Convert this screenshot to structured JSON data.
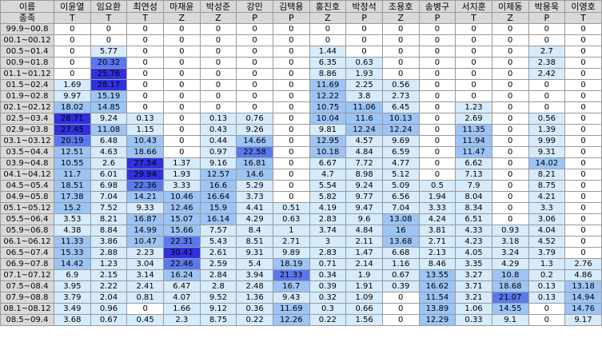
{
  "header": {
    "corner_top": "이름",
    "corner_bottom": "종족",
    "players": [
      {
        "name": "이윤열",
        "race": "T"
      },
      {
        "name": "임요환",
        "race": "T"
      },
      {
        "name": "최연성",
        "race": "T"
      },
      {
        "name": "마재윤",
        "race": "Z"
      },
      {
        "name": "박성준",
        "race": "Z"
      },
      {
        "name": "강민",
        "race": "P"
      },
      {
        "name": "김택용",
        "race": "P"
      },
      {
        "name": "홍진호",
        "race": "Z"
      },
      {
        "name": "박정석",
        "race": "P"
      },
      {
        "name": "조용호",
        "race": "Z"
      },
      {
        "name": "송병구",
        "race": "P"
      },
      {
        "name": "서지훈",
        "race": "T"
      },
      {
        "name": "이제동",
        "race": "Z"
      },
      {
        "name": "박용욱",
        "race": "P"
      },
      {
        "name": "이영호",
        "race": "T"
      }
    ]
  },
  "color_scale": {
    "max": "#3030e0",
    "high": "#5a78ee",
    "mid": "#9cc4f6",
    "low": "#d6ebfc",
    "none": "#ffffff"
  },
  "rows": [
    {
      "period": "99.9~00.8",
      "values": [
        "0",
        "0",
        "0",
        "0",
        "0",
        "0",
        "0",
        "0",
        "0",
        "0",
        "0",
        "0",
        "0",
        "0",
        "0"
      ]
    },
    {
      "period": "00.1~00.12",
      "values": [
        "0",
        "0",
        "0",
        "0",
        "0",
        "0",
        "0",
        "0",
        "0",
        "0",
        "0",
        "0",
        "0",
        "0",
        "0"
      ]
    },
    {
      "period": "00.5~01.4",
      "values": [
        "0",
        "5.77",
        "0",
        "0",
        "0",
        "0",
        "0",
        "1.44",
        "0",
        "0",
        "0",
        "0",
        "0",
        "2.7",
        "0"
      ]
    },
    {
      "period": "00.9~01.8",
      "values": [
        "0",
        "20.32",
        "0",
        "0",
        "0",
        "0",
        "0",
        "6.35",
        "0.63",
        "0",
        "0",
        "0",
        "0",
        "2.38",
        "0"
      ]
    },
    {
      "period": "01.1~01.12",
      "values": [
        "0",
        "25.76",
        "0",
        "0",
        "0",
        "0",
        "0",
        "8.86",
        "1.93",
        "0",
        "0",
        "0",
        "0",
        "2.42",
        "0"
      ]
    },
    {
      "period": "01.5~02.4",
      "values": [
        "1.69",
        "28.17",
        "0",
        "0",
        "0",
        "0",
        "0",
        "11.69",
        "2.25",
        "0.56",
        "0",
        "0",
        "0",
        "0",
        "0"
      ]
    },
    {
      "period": "01.9~02.8",
      "values": [
        "9.97",
        "15.19",
        "0",
        "0",
        "0",
        "0",
        "0",
        "12.22",
        "3.8",
        "2.73",
        "0",
        "0",
        "0",
        "0",
        "0"
      ]
    },
    {
      "period": "02.1~02.12",
      "values": [
        "18.02",
        "14.85",
        "0",
        "0",
        "0",
        "0",
        "0",
        "10.75",
        "11.06",
        "6.45",
        "0",
        "1.23",
        "0",
        "0",
        "0"
      ]
    },
    {
      "period": "02.5~03.4",
      "values": [
        "28.71",
        "9.24",
        "0.13",
        "0",
        "0.13",
        "0.76",
        "0",
        "10.04",
        "11.6",
        "10.13",
        "0",
        "2.69",
        "0",
        "0.56",
        "0"
      ]
    },
    {
      "period": "02.9~03.8",
      "values": [
        "27.45",
        "11.08",
        "1.15",
        "0",
        "0.43",
        "9.26",
        "0",
        "9.81",
        "12.24",
        "12.24",
        "0",
        "11.35",
        "0",
        "1.39",
        "0"
      ]
    },
    {
      "period": "03.1~03.12",
      "values": [
        "20.19",
        "6.48",
        "10.43",
        "0",
        "0.44",
        "14.66",
        "0",
        "12.95",
        "4.57",
        "9.69",
        "0",
        "11.94",
        "0",
        "9.99",
        "0"
      ]
    },
    {
      "period": "03.5~04.4",
      "values": [
        "12.51",
        "4.63",
        "18.66",
        "0",
        "0.97",
        "22.58",
        "0",
        "10.18",
        "4.84",
        "6.59",
        "0",
        "11.47",
        "0",
        "9.31",
        "0"
      ]
    },
    {
      "period": "03.9~04.8",
      "values": [
        "10.55",
        "2.6",
        "27.54",
        "1.37",
        "9.16",
        "16.81",
        "0",
        "6.67",
        "7.72",
        "4.77",
        "0",
        "6.62",
        "0",
        "14.02",
        "0"
      ]
    },
    {
      "period": "04.1~04.12",
      "values": [
        "11.7",
        "6.01",
        "29.94",
        "1.93",
        "12.57",
        "14.6",
        "0",
        "4.7",
        "8.98",
        "5.12",
        "0",
        "7.13",
        "0",
        "8.21",
        "0"
      ]
    },
    {
      "period": "04.5~05.4",
      "values": [
        "18.51",
        "6.98",
        "22.36",
        "3.33",
        "16.6",
        "5.29",
        "0",
        "5.54",
        "9.24",
        "5.09",
        "0.5",
        "7.9",
        "0",
        "8.75",
        "0"
      ]
    },
    {
      "period": "04.9~05.8",
      "values": [
        "17.38",
        "7.04",
        "14.21",
        "10.46",
        "16.64",
        "3.73",
        "0",
        "5.82",
        "9.77",
        "6.56",
        "1.94",
        "8.04",
        "0",
        "4.21",
        "0"
      ]
    },
    {
      "period": "05.1~05.12",
      "values": [
        "15.2",
        "7.52",
        "9.33",
        "12.46",
        "15.9",
        "4.41",
        "0.51",
        "4.19",
        "9.47",
        "7.04",
        "3.33",
        "8.34",
        "0",
        "3.3",
        "0"
      ]
    },
    {
      "period": "05.5~06.4",
      "values": [
        "3.53",
        "8.21",
        "16.87",
        "15.07",
        "16.14",
        "4.29",
        "0.63",
        "2.83",
        "9.6",
        "13.08",
        "4.24",
        "6.51",
        "0",
        "3.06",
        "0"
      ]
    },
    {
      "period": "05.9~06.8",
      "values": [
        "4.38",
        "8.84",
        "14.99",
        "15.66",
        "7.57",
        "8.4",
        "1",
        "3.74",
        "4.84",
        "16",
        "3.81",
        "4.33",
        "0.93",
        "4.04",
        "0"
      ]
    },
    {
      "period": "06.1~06.12",
      "values": [
        "11.33",
        "3.86",
        "10.47",
        "22.31",
        "5.43",
        "8.51",
        "2.71",
        "3",
        "2.11",
        "13.68",
        "2.71",
        "4.23",
        "3.18",
        "4.52",
        "0"
      ]
    },
    {
      "period": "06.5~07.4",
      "values": [
        "15.33",
        "2.88",
        "2.23",
        "30.41",
        "2.61",
        "9.31",
        "9.89",
        "2.83",
        "1.47",
        "6.68",
        "2.13",
        "4.05",
        "3.24",
        "3.79",
        "0"
      ]
    },
    {
      "period": "06.9~07.8",
      "values": [
        "14.42",
        "1.23",
        "3.04",
        "22.46",
        "2.59",
        "5.4",
        "18.19",
        "0.71",
        "2.14",
        "1.16",
        "8.46",
        "3.35",
        "4.29",
        "1.3",
        "2.76"
      ]
    },
    {
      "period": "07.1~07.12",
      "values": [
        "6.9",
        "2.15",
        "3.14",
        "16.24",
        "2.84",
        "3.94",
        "21.33",
        "0.34",
        "1.9",
        "0.67",
        "13.55",
        "3.27",
        "10.8",
        "0.2",
        "4.86"
      ]
    },
    {
      "period": "07.5~08.4",
      "values": [
        "3.95",
        "2.22",
        "2.41",
        "6.47",
        "2.8",
        "2.48",
        "16.7",
        "0.39",
        "1.91",
        "0.39",
        "16.62",
        "3.71",
        "18.68",
        "0.13",
        "13.18"
      ]
    },
    {
      "period": "07.9~08.8",
      "values": [
        "3.79",
        "2.04",
        "0.81",
        "4.07",
        "9.52",
        "1.36",
        "9.43",
        "0.32",
        "1.09",
        "0",
        "11.54",
        "3.21",
        "21.07",
        "0.13",
        "14.94"
      ]
    },
    {
      "period": "08.1~08.12",
      "values": [
        "3.49",
        "0.96",
        "0",
        "1.66",
        "9.12",
        "0.36",
        "11.69",
        "0.3",
        "0.66",
        "0",
        "13.89",
        "1.06",
        "14.55",
        "0",
        "14.76"
      ]
    },
    {
      "period": "08.5~09.4",
      "values": [
        "3.68",
        "0.67",
        "0.45",
        "2.3",
        "8.75",
        "0.22",
        "12.26",
        "0.22",
        "1.56",
        "0",
        "12.29",
        "0.33",
        "9.1",
        "0",
        "9.17"
      ]
    }
  ]
}
